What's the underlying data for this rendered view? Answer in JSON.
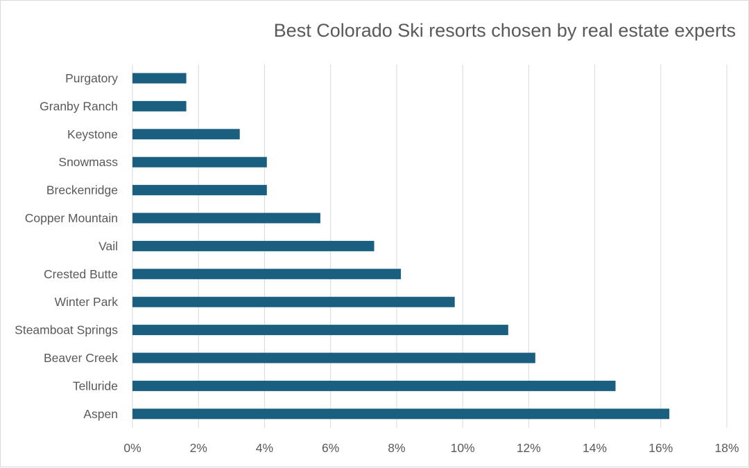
{
  "chart_data": {
    "type": "bar",
    "orientation": "horizontal",
    "title": "Best Colorado Ski resorts chosen by real estate experts",
    "xlabel": "",
    "ylabel": "",
    "categories": [
      "Purgatory",
      "Granby Ranch",
      "Keystone",
      "Snowmass",
      "Breckenridge",
      "Copper Mountain",
      "Vail",
      "Crested Butte",
      "Winter Park",
      "Steamboat Springs",
      "Beaver Creek",
      "Telluride",
      "Aspen"
    ],
    "values": [
      1.63,
      1.63,
      3.25,
      4.07,
      4.07,
      5.69,
      7.32,
      8.13,
      9.76,
      11.38,
      12.2,
      14.63,
      16.26
    ],
    "xlim": [
      0,
      18
    ],
    "ticks": [
      0,
      2,
      4,
      6,
      8,
      10,
      12,
      14,
      16,
      18
    ],
    "tick_labels": [
      "0%",
      "2%",
      "4%",
      "6%",
      "8%",
      "10%",
      "12%",
      "14%",
      "16%",
      "18%"
    ],
    "value_unit": "%",
    "grid": "vertical",
    "bar_color": "#1a5e80",
    "grid_color": "#d9d9d9"
  }
}
